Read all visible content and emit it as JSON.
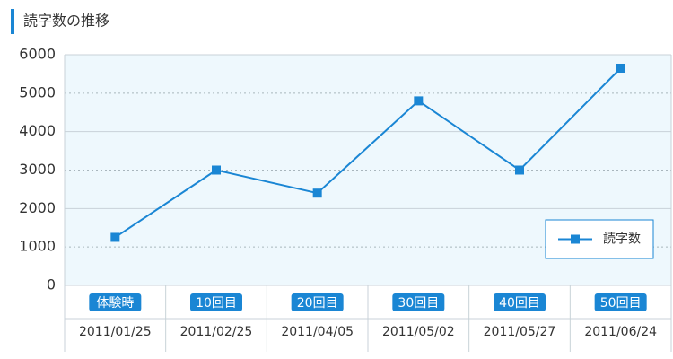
{
  "chart_data": {
    "type": "line",
    "title": "読字数の推移",
    "categories": [
      "体験時",
      "10回目",
      "20回目",
      "30回目",
      "40回目",
      "50回目"
    ],
    "dates": [
      "2011/01/25",
      "2011/02/25",
      "2011/04/05",
      "2011/05/02",
      "2011/05/27",
      "2011/06/24"
    ],
    "series": [
      {
        "name": "読字数",
        "color": "#1a86d4",
        "values": [
          1250,
          3000,
          2400,
          4800,
          3000,
          5650
        ]
      }
    ],
    "ylim": [
      0,
      6000
    ],
    "yticks": [
      0,
      1000,
      2000,
      3000,
      4000,
      5000,
      6000
    ],
    "grid": true,
    "legend": "lower right"
  }
}
